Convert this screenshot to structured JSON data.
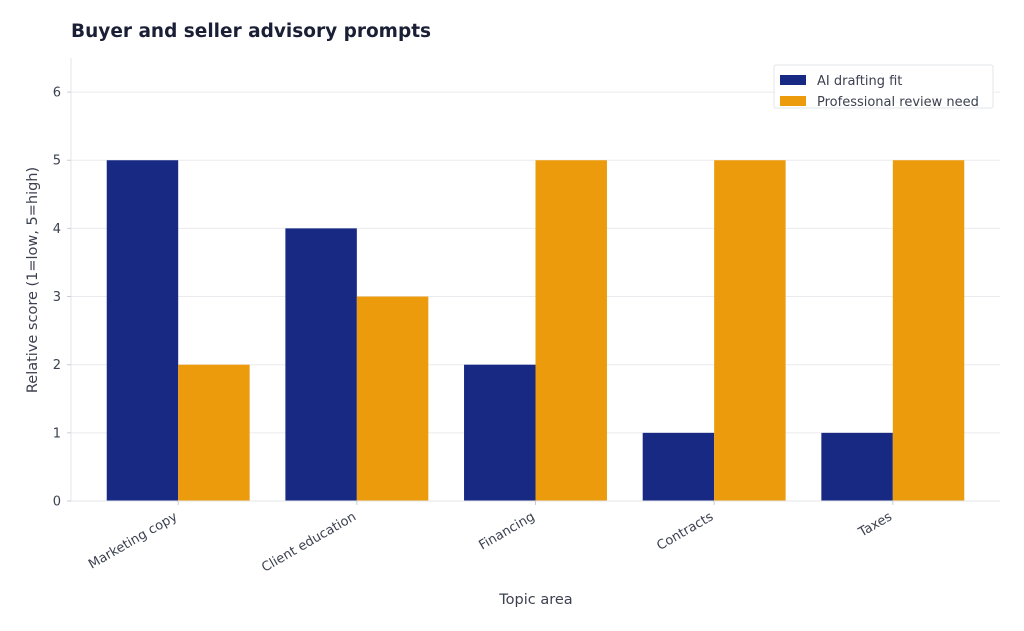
{
  "chart_data": {
    "type": "bar",
    "title": "Buyer and seller advisory prompts",
    "xlabel": "Topic area",
    "ylabel": "Relative score (1=low, 5=high)",
    "categories": [
      "Marketing copy",
      "Client education",
      "Financing",
      "Contracts",
      "Taxes"
    ],
    "series": [
      {
        "name": "AI drafting fit",
        "values": [
          5,
          4,
          2,
          1,
          1
        ],
        "color": "#172983"
      },
      {
        "name": "Professional review need",
        "values": [
          2,
          3,
          5,
          5,
          5
        ],
        "color": "#eb9b0b"
      }
    ],
    "ylim": [
      0,
      6.5
    ],
    "yticks": [
      0,
      1,
      2,
      3,
      4,
      5,
      6
    ],
    "grid": "horizontal",
    "legend_position": "top-right"
  }
}
